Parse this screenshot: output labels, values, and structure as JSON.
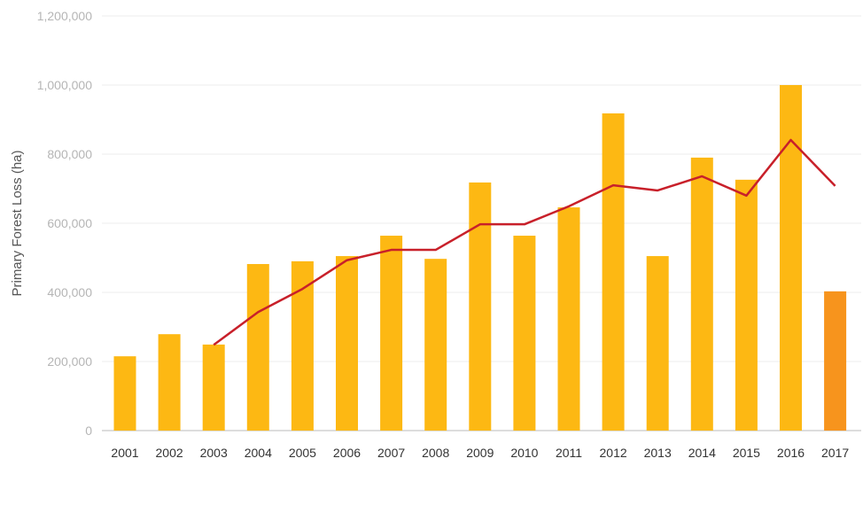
{
  "chart_data": {
    "type": "bar",
    "title": "",
    "xlabel": "",
    "ylabel": "Primary Forest Loss (ha)",
    "ylim": [
      0,
      1200000
    ],
    "yticks": [
      "0",
      "200,000",
      "400,000",
      "600,000",
      "800,000",
      "1,000,000",
      "1,200,000"
    ],
    "ytick_values": [
      0,
      200000,
      400000,
      600000,
      800000,
      1000000,
      1200000
    ],
    "grid": true,
    "categories": [
      "2001",
      "2002",
      "2003",
      "2004",
      "2005",
      "2006",
      "2007",
      "2008",
      "2009",
      "2010",
      "2011",
      "2012",
      "2013",
      "2014",
      "2015",
      "2016",
      "2017"
    ],
    "series": [
      {
        "type": "bar",
        "values": [
          215000,
          279000,
          249000,
          482000,
          490000,
          505000,
          564000,
          497000,
          718000,
          564000,
          646000,
          918000,
          505000,
          790000,
          726000,
          1000000,
          403000
        ],
        "color": "#FDB813",
        "highlight_color": "#F7941D",
        "highlight_index": 16
      },
      {
        "type": "line",
        "values": [
          null,
          null,
          248000,
          343000,
          410000,
          493000,
          523000,
          523000,
          597000,
          597000,
          649000,
          710000,
          695000,
          736000,
          680000,
          841000,
          708000
        ],
        "color": "#C8202A"
      }
    ]
  }
}
